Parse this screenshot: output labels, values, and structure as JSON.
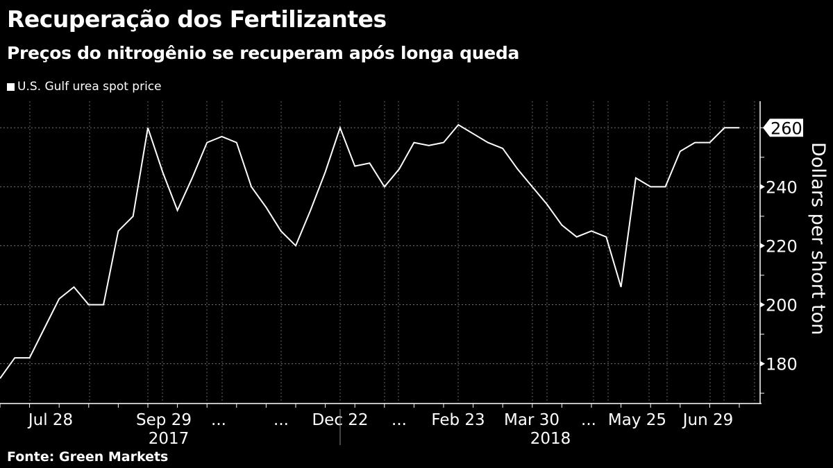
{
  "header": {
    "title": "Recuperação dos Fertilizantes",
    "subtitle": "Preços do nitrogênio se recuperam após longa queda"
  },
  "legend": {
    "label": "U.S. Gulf urea spot price"
  },
  "source": "Fonte: Green Markets",
  "chart_data": {
    "type": "line",
    "title": "Recuperação dos Fertilizantes",
    "subtitle": "Preços do nitrogênio se recuperam após longa queda",
    "xlabel": "",
    "ylabel": "Dollars per short ton",
    "ylim": [
      166.5,
      269
    ],
    "yticks": [
      180,
      200,
      220,
      240,
      260
    ],
    "xtick_labels": [
      "Jul 28",
      "Sep 29",
      "...",
      "...",
      "Dec 22",
      "...",
      "Feb 23",
      "Mar 30",
      "...",
      "May 25",
      "Jun 29"
    ],
    "year_labels": [
      "2017",
      "2018"
    ],
    "last_value_label": "260",
    "grid": true,
    "series": [
      {
        "name": "U.S. Gulf urea spot price",
        "color": "#ffffff",
        "values": [
          175,
          182,
          182,
          192,
          202,
          206,
          200,
          200,
          225,
          230,
          260,
          245,
          232,
          243,
          255,
          257,
          255,
          240,
          233,
          225,
          220,
          232,
          245,
          260,
          247,
          248,
          240,
          246,
          255,
          254,
          255,
          261,
          258,
          255,
          253,
          246,
          240,
          234,
          227,
          223,
          225,
          223,
          206,
          243,
          240,
          240,
          252,
          255,
          255,
          260,
          260
        ]
      }
    ]
  }
}
